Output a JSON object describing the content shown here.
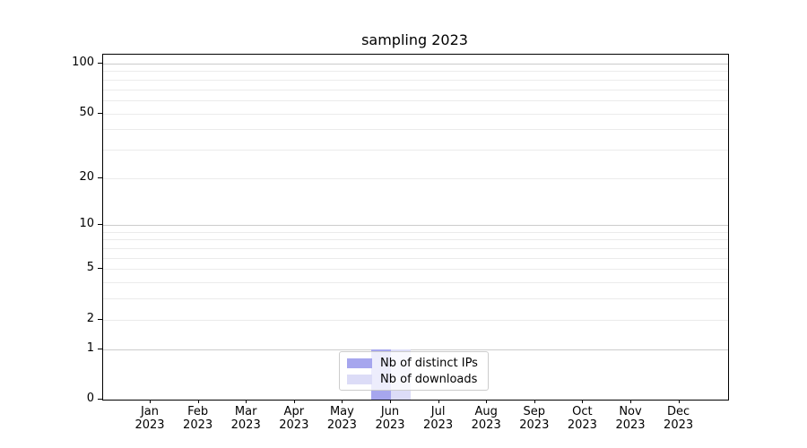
{
  "title": "sampling 2023",
  "chart_data": {
    "type": "bar",
    "title": "sampling 2023",
    "categories": [
      "Jan 2023",
      "Feb 2023",
      "Mar 2023",
      "Apr 2023",
      "May 2023",
      "Jun 2023",
      "Jul 2023",
      "Aug 2023",
      "Sep 2023",
      "Oct 2023",
      "Nov 2023",
      "Dec 2023"
    ],
    "x_ticklabel_months": [
      "Jan",
      "Feb",
      "Mar",
      "Apr",
      "May",
      "Jun",
      "Jul",
      "Aug",
      "Sep",
      "Oct",
      "Nov",
      "Dec"
    ],
    "x_ticklabel_year": "2023",
    "series": [
      {
        "name": "Nb of distinct IPs",
        "color": "#a6a6ee",
        "values": [
          0,
          0,
          0,
          0,
          0,
          1,
          0,
          0,
          0,
          0,
          0,
          0
        ]
      },
      {
        "name": "Nb of downloads",
        "color": "#dcdcf7",
        "values": [
          0,
          0,
          0,
          0,
          0,
          1,
          0,
          0,
          0,
          0,
          0,
          0
        ]
      }
    ],
    "xlabel": "",
    "ylabel": "",
    "yscale": "symlog",
    "y_major_ticks": [
      0,
      1,
      2,
      5,
      10,
      20,
      50,
      100
    ],
    "y_major_grid_values": [
      1,
      10,
      100
    ],
    "y_minor_grid_values": [
      3,
      4,
      6,
      7,
      8,
      9,
      30,
      40,
      60,
      70,
      80,
      90
    ],
    "ylim": [
      0,
      113
    ],
    "grid": "horizontal",
    "legend_position": "lower center"
  },
  "colors": {
    "grid_major": "#cccccc",
    "grid_minor": "#ebebeb",
    "spine": "#000000",
    "background": "#ffffff"
  }
}
